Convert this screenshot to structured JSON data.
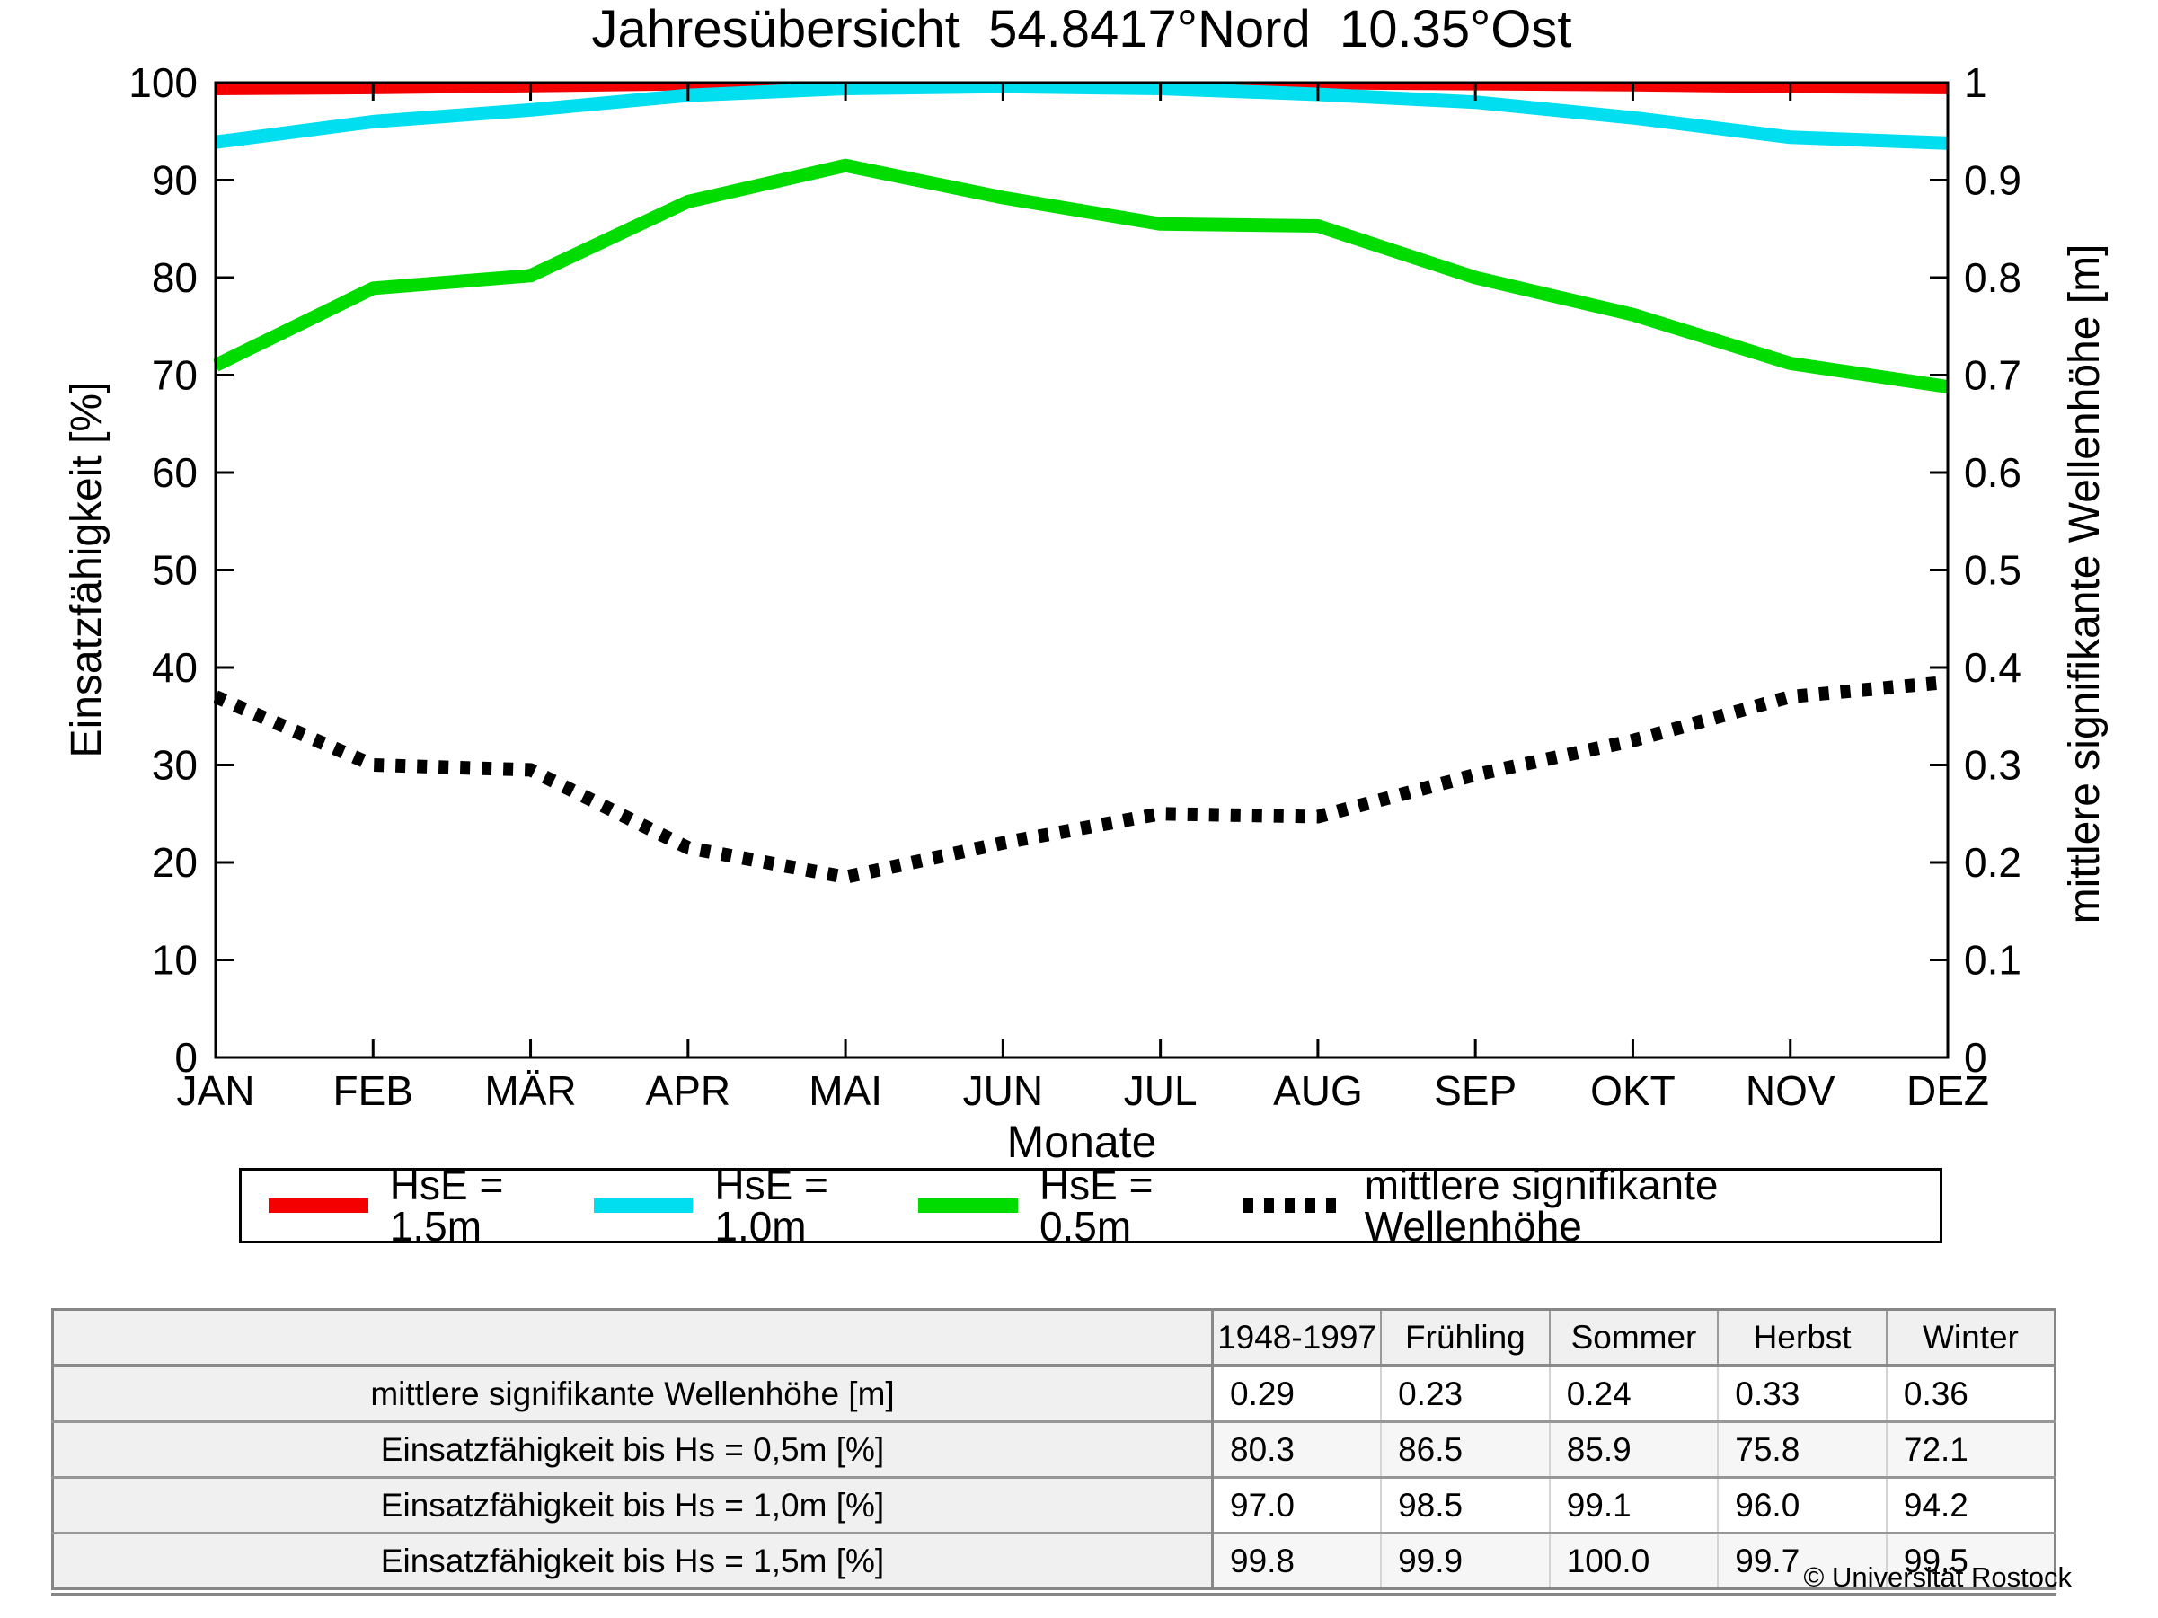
{
  "title": "Jahresübersicht  54.8417°Nord  10.35°Ost",
  "axes": {
    "x_label": "Monate",
    "y_left_label": "Einsatzfähigkeit [%]",
    "y_right_label": "mittlere signifikante Wellenhöhe [m]",
    "y_left_ticks": [
      "100",
      "90",
      "80",
      "70",
      "60",
      "50",
      "40",
      "30",
      "20",
      "10",
      "0"
    ],
    "y_right_ticks": [
      "1",
      "0.9",
      "0.8",
      "0.7",
      "0.6",
      "0.5",
      "0.4",
      "0.3",
      "0.2",
      "0.1",
      "0"
    ]
  },
  "chart_data": {
    "type": "line",
    "title": "Jahresübersicht 54.8417°Nord 10.35°Ost",
    "xlabel": "Monate",
    "ylabel_left": "Einsatzfähigkeit [%]",
    "ylabel_right": "mittlere signifikante Wellenhöhe [m]",
    "ylim_left": [
      0,
      100
    ],
    "ylim_right": [
      0,
      1
    ],
    "grid": false,
    "legend_position": "below",
    "categories": [
      "JAN",
      "FEB",
      "MÄR",
      "APR",
      "MAI",
      "JUN",
      "JUL",
      "AUG",
      "SEP",
      "OKT",
      "NOV",
      "DEZ"
    ],
    "series": [
      {
        "name": "HsE = 1.5m",
        "axis": "left",
        "color": "#f40000",
        "style": "solid",
        "values": [
          99.4,
          99.5,
          99.7,
          99.9,
          100,
          100,
          100,
          100,
          99.9,
          99.8,
          99.6,
          99.5
        ]
      },
      {
        "name": "HsE = 1.0m",
        "axis": "left",
        "color": "#00def0",
        "style": "solid",
        "values": [
          93.9,
          96.0,
          97.2,
          98.7,
          99.4,
          99.6,
          99.4,
          98.8,
          98.0,
          96.4,
          94.4,
          93.8
        ]
      },
      {
        "name": "HsE = 0.5m",
        "axis": "left",
        "color": "#00dc00",
        "style": "solid",
        "values": [
          71.0,
          78.9,
          80.2,
          87.8,
          91.5,
          88.2,
          85.5,
          85.3,
          80.0,
          76.2,
          71.2,
          68.8
        ]
      },
      {
        "name": "mittlere signifikante Wellenhöhe",
        "axis": "right",
        "color": "#000000",
        "style": "dotted",
        "values": [
          0.37,
          0.3,
          0.295,
          0.215,
          0.185,
          0.22,
          0.25,
          0.247,
          0.29,
          0.325,
          0.37,
          0.385
        ]
      }
    ]
  },
  "table": {
    "header": [
      "",
      "1948-1997",
      "Frühling",
      "Sommer",
      "Herbst",
      "Winter"
    ],
    "rows": [
      {
        "label": "mittlere signifikante Wellenhöhe [m]",
        "values": [
          "0.29",
          "0.23",
          "0.24",
          "0.33",
          "0.36"
        ]
      },
      {
        "label": "Einsatzfähigkeit bis Hs = 0,5m [%]",
        "values": [
          "80.3",
          "86.5",
          "85.9",
          "75.8",
          "72.1"
        ]
      },
      {
        "label": "Einsatzfähigkeit bis Hs = 1,0m [%]",
        "values": [
          "97.0",
          "98.5",
          "99.1",
          "96.0",
          "94.2"
        ]
      },
      {
        "label": "Einsatzfähigkeit bis Hs = 1,5m [%]",
        "values": [
          "99.8",
          "99.9",
          "100.0",
          "99.7",
          "99.5"
        ]
      }
    ]
  },
  "footer": {
    "copyright": "© Universität Rostock"
  }
}
